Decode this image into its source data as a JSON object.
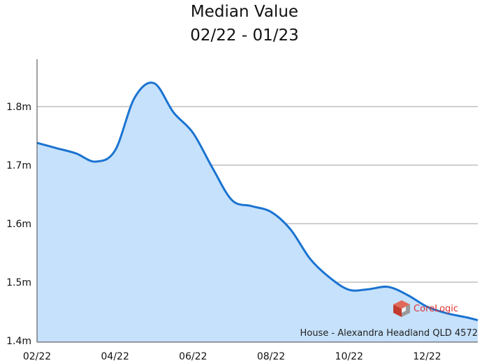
{
  "chart_data": {
    "type": "area",
    "title": "Median Value",
    "subtitle": "02/22 - 01/23",
    "x_ticks": [
      "02/22",
      "04/22",
      "06/22",
      "08/22",
      "10/22",
      "12/22"
    ],
    "y_ticks": [
      "1.4m",
      "1.5m",
      "1.6m",
      "1.7m",
      "1.8m"
    ],
    "ylim": [
      1.4,
      1.9
    ],
    "xlim": [
      0,
      11.3
    ],
    "grid": true,
    "series": [
      {
        "x": [
          0,
          0.5,
          1.0,
          1.5,
          2.0,
          2.5,
          3.0,
          3.5,
          4.0,
          4.5,
          5.0,
          5.5,
          6.0,
          6.5,
          7.0,
          7.5,
          8.0,
          8.5,
          9.0,
          9.5,
          10.0,
          10.5,
          11.0,
          11.3
        ],
        "values": [
          1.738,
          1.729,
          1.72,
          1.706,
          1.725,
          1.815,
          1.84,
          1.79,
          1.755,
          1.695,
          1.64,
          1.63,
          1.62,
          1.59,
          1.54,
          1.508,
          1.487,
          1.488,
          1.492,
          1.478,
          1.458,
          1.447,
          1.44,
          1.435
        ]
      }
    ],
    "caption": "House - Alexandra Headland QLD 4572",
    "colors": {
      "line": "#1a73d1",
      "fill": "#c6e1fb",
      "grid": "#9e9e9e",
      "axis": "#444444"
    }
  },
  "logo": {
    "text": "CoreLogic",
    "icon": "corelogic-cube-icon"
  }
}
